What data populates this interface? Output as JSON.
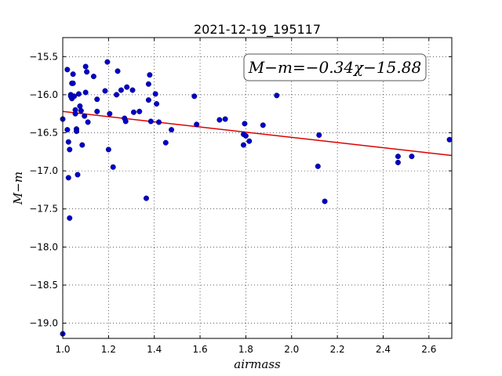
{
  "chart_data": {
    "type": "scatter",
    "title": "2021-12-19_195117",
    "xlabel": "airmass",
    "ylabel": "M−m",
    "xlim": [
      1.0,
      2.7
    ],
    "ylim": [
      -19.2,
      -15.25
    ],
    "y_inverted": true,
    "grid": true,
    "x_ticks": [
      1.0,
      1.2,
      1.4,
      1.6,
      1.8,
      2.0,
      2.2,
      2.4,
      2.6
    ],
    "x_tick_labels": [
      "1.0",
      "1.2",
      "1.4",
      "1.6",
      "1.8",
      "2.0",
      "2.2",
      "2.4",
      "2.6"
    ],
    "y_ticks": [
      -15.5,
      -16.0,
      -16.5,
      -17.0,
      -17.5,
      -18.0,
      -18.5,
      -19.0
    ],
    "y_tick_labels": [
      "−15.5",
      "−16.0",
      "−16.5",
      "−17.0",
      "−17.5",
      "−18.0",
      "−18.5",
      "−19.0"
    ],
    "annotation": "M−m=−0.34χ−15.88",
    "fit_line": {
      "slope": -0.34,
      "intercept": -15.88,
      "color": "#dd0000"
    },
    "point_color": "#0000cc",
    "points": [
      [
        1.0,
        -16.32
      ],
      [
        1.0,
        -19.14
      ],
      [
        1.02,
        -15.67
      ],
      [
        1.02,
        -16.46
      ],
      [
        1.025,
        -16.62
      ],
      [
        1.03,
        -16.72
      ],
      [
        1.025,
        -17.09
      ],
      [
        1.03,
        -17.62
      ],
      [
        1.035,
        -16.0
      ],
      [
        1.04,
        -16.05
      ],
      [
        1.035,
        -16.02
      ],
      [
        1.04,
        -15.85
      ],
      [
        1.045,
        -15.85
      ],
      [
        1.045,
        -15.73
      ],
      [
        1.05,
        -16.02
      ],
      [
        1.055,
        -16.2
      ],
      [
        1.055,
        -16.25
      ],
      [
        1.06,
        -16.45
      ],
      [
        1.06,
        -16.48
      ],
      [
        1.065,
        -17.05
      ],
      [
        1.07,
        -15.99
      ],
      [
        1.075,
        -16.15
      ],
      [
        1.08,
        -16.21
      ],
      [
        1.085,
        -16.66
      ],
      [
        1.095,
        -16.28
      ],
      [
        1.1,
        -15.63
      ],
      [
        1.1,
        -15.97
      ],
      [
        1.105,
        -15.7
      ],
      [
        1.11,
        -16.36
      ],
      [
        1.135,
        -15.76
      ],
      [
        1.15,
        -16.06
      ],
      [
        1.15,
        -16.22
      ],
      [
        1.185,
        -15.95
      ],
      [
        1.195,
        -15.57
      ],
      [
        1.205,
        -16.25
      ],
      [
        1.2,
        -16.72
      ],
      [
        1.22,
        -16.95
      ],
      [
        1.235,
        -16.0
      ],
      [
        1.24,
        -15.69
      ],
      [
        1.255,
        -15.94
      ],
      [
        1.27,
        -16.31
      ],
      [
        1.275,
        -16.35
      ],
      [
        1.28,
        -15.9
      ],
      [
        1.305,
        -15.94
      ],
      [
        1.31,
        -16.23
      ],
      [
        1.335,
        -16.22
      ],
      [
        1.365,
        -17.36
      ],
      [
        1.375,
        -16.07
      ],
      [
        1.375,
        -15.86
      ],
      [
        1.38,
        -15.74
      ],
      [
        1.385,
        -16.35
      ],
      [
        1.405,
        -15.99
      ],
      [
        1.41,
        -16.12
      ],
      [
        1.42,
        -16.36
      ],
      [
        1.45,
        -16.63
      ],
      [
        1.475,
        -16.46
      ],
      [
        1.575,
        -16.02
      ],
      [
        1.585,
        -16.39
      ],
      [
        1.685,
        -16.33
      ],
      [
        1.71,
        -16.32
      ],
      [
        1.79,
        -16.52
      ],
      [
        1.79,
        -16.66
      ],
      [
        1.795,
        -16.38
      ],
      [
        1.8,
        -16.54
      ],
      [
        1.815,
        -16.61
      ],
      [
        1.875,
        -16.4
      ],
      [
        1.935,
        -16.01
      ],
      [
        2.115,
        -16.94
      ],
      [
        2.12,
        -16.53
      ],
      [
        2.145,
        -17.4
      ],
      [
        2.465,
        -16.81
      ],
      [
        2.465,
        -16.89
      ],
      [
        2.525,
        -16.81
      ],
      [
        2.69,
        -16.59
      ]
    ]
  }
}
